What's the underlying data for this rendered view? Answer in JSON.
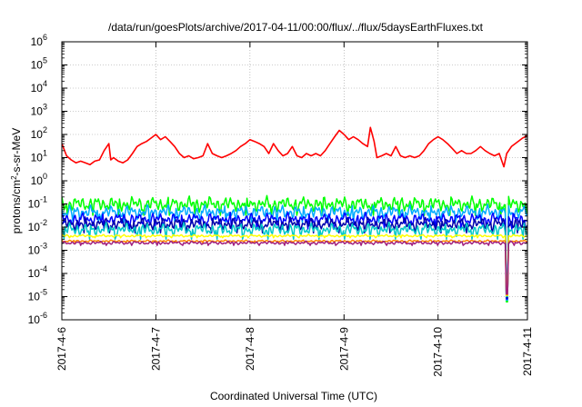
{
  "chart_data": {
    "type": "line",
    "title": "/data/run/goesPlots/archive/2017-04-11/00:00/flux/../flux/5daysEarthFluxes.txt",
    "xlabel": "Coordinated Universal Time (UTC)",
    "ylabel": {
      "prefix": "protons/cm",
      "sup": "2",
      "suffix": "-s-sr-MeV"
    },
    "yscale": "log",
    "ylim": [
      1e-06,
      1000000.0
    ],
    "xlim": [
      0,
      4.95
    ],
    "y_ticks": [
      {
        "exp": "-6"
      },
      {
        "exp": "-5"
      },
      {
        "exp": "-4"
      },
      {
        "exp": "-3"
      },
      {
        "exp": "-2"
      },
      {
        "exp": "-1"
      },
      {
        "exp": "0"
      },
      {
        "exp": "1"
      },
      {
        "exp": "2"
      },
      {
        "exp": "3"
      },
      {
        "exp": "4"
      },
      {
        "exp": "5"
      },
      {
        "exp": "6"
      }
    ],
    "y_tick_base": "10",
    "x_ticks": [
      {
        "label": "2017-4-6",
        "value": 0
      },
      {
        "label": "2017-4-7",
        "value": 1
      },
      {
        "label": "2017-4-8",
        "value": 2
      },
      {
        "label": "2017-4-9",
        "value": 3
      },
      {
        "label": "2017-4-10",
        "value": 4
      },
      {
        "label": "2017-4-11",
        "value": 4.95
      }
    ],
    "grid": true,
    "series": [
      {
        "color": "#ff0000",
        "points": [
          [
            0,
            40
          ],
          [
            0.05,
            12
          ],
          [
            0.1,
            8
          ],
          [
            0.15,
            6
          ],
          [
            0.2,
            7
          ],
          [
            0.25,
            6
          ],
          [
            0.3,
            5
          ],
          [
            0.35,
            7
          ],
          [
            0.4,
            8
          ],
          [
            0.45,
            20
          ],
          [
            0.5,
            40
          ],
          [
            0.52,
            8
          ],
          [
            0.55,
            10
          ],
          [
            0.6,
            7
          ],
          [
            0.65,
            6
          ],
          [
            0.7,
            8
          ],
          [
            0.75,
            15
          ],
          [
            0.8,
            30
          ],
          [
            0.85,
            40
          ],
          [
            0.9,
            50
          ],
          [
            0.95,
            70
          ],
          [
            1.0,
            100
          ],
          [
            1.05,
            60
          ],
          [
            1.1,
            80
          ],
          [
            1.15,
            50
          ],
          [
            1.2,
            30
          ],
          [
            1.25,
            15
          ],
          [
            1.3,
            10
          ],
          [
            1.35,
            12
          ],
          [
            1.4,
            9
          ],
          [
            1.45,
            10
          ],
          [
            1.5,
            12
          ],
          [
            1.55,
            40
          ],
          [
            1.6,
            15
          ],
          [
            1.65,
            12
          ],
          [
            1.7,
            10
          ],
          [
            1.75,
            12
          ],
          [
            1.8,
            15
          ],
          [
            1.85,
            20
          ],
          [
            1.9,
            30
          ],
          [
            1.95,
            40
          ],
          [
            2.0,
            60
          ],
          [
            2.05,
            50
          ],
          [
            2.1,
            40
          ],
          [
            2.15,
            30
          ],
          [
            2.2,
            15
          ],
          [
            2.25,
            40
          ],
          [
            2.3,
            20
          ],
          [
            2.35,
            12
          ],
          [
            2.4,
            15
          ],
          [
            2.45,
            30
          ],
          [
            2.5,
            12
          ],
          [
            2.55,
            10
          ],
          [
            2.6,
            15
          ],
          [
            2.65,
            12
          ],
          [
            2.7,
            15
          ],
          [
            2.75,
            12
          ],
          [
            2.8,
            20
          ],
          [
            2.85,
            40
          ],
          [
            2.9,
            80
          ],
          [
            2.95,
            150
          ],
          [
            3.0,
            100
          ],
          [
            3.05,
            60
          ],
          [
            3.1,
            80
          ],
          [
            3.15,
            60
          ],
          [
            3.2,
            40
          ],
          [
            3.25,
            30
          ],
          [
            3.28,
            200
          ],
          [
            3.32,
            50
          ],
          [
            3.35,
            10
          ],
          [
            3.4,
            12
          ],
          [
            3.45,
            15
          ],
          [
            3.5,
            12
          ],
          [
            3.55,
            30
          ],
          [
            3.6,
            12
          ],
          [
            3.65,
            10
          ],
          [
            3.7,
            12
          ],
          [
            3.75,
            10
          ],
          [
            3.8,
            12
          ],
          [
            3.85,
            20
          ],
          [
            3.9,
            40
          ],
          [
            3.95,
            60
          ],
          [
            4.0,
            80
          ],
          [
            4.05,
            60
          ],
          [
            4.1,
            40
          ],
          [
            4.15,
            25
          ],
          [
            4.2,
            15
          ],
          [
            4.25,
            20
          ],
          [
            4.3,
            15
          ],
          [
            4.35,
            15
          ],
          [
            4.4,
            20
          ],
          [
            4.45,
            30
          ],
          [
            4.5,
            20
          ],
          [
            4.55,
            15
          ],
          [
            4.6,
            12
          ],
          [
            4.65,
            15
          ],
          [
            4.7,
            4
          ],
          [
            4.73,
            15
          ],
          [
            4.78,
            30
          ],
          [
            4.85,
            50
          ],
          [
            4.9,
            70
          ],
          [
            4.95,
            90
          ]
        ]
      },
      {
        "color": "#00ff00",
        "base": 0.1,
        "amp": 0.35,
        "phase": 1.3
      },
      {
        "color": "#00aaff",
        "base": 0.045,
        "amp": 0.32,
        "phase": 2.1
      },
      {
        "color": "#0000ff",
        "base": 0.022,
        "amp": 0.3,
        "phase": 0.7
      },
      {
        "color": "#0000aa",
        "base": 0.014,
        "amp": 0.28,
        "phase": 3.3
      },
      {
        "color": "#00c8c8",
        "base": 0.008,
        "amp": 0.3,
        "phase": 2.7
      },
      {
        "color": "#ffff00",
        "base": 0.0042,
        "amp": 0.06,
        "phase": 0.4
      },
      {
        "color": "#ff8800",
        "base": 0.0025,
        "amp": 0.05,
        "phase": 1.9
      },
      {
        "color": "#a02080",
        "base": 0.0021,
        "amp": 0.08,
        "phase": 4.1
      }
    ]
  }
}
